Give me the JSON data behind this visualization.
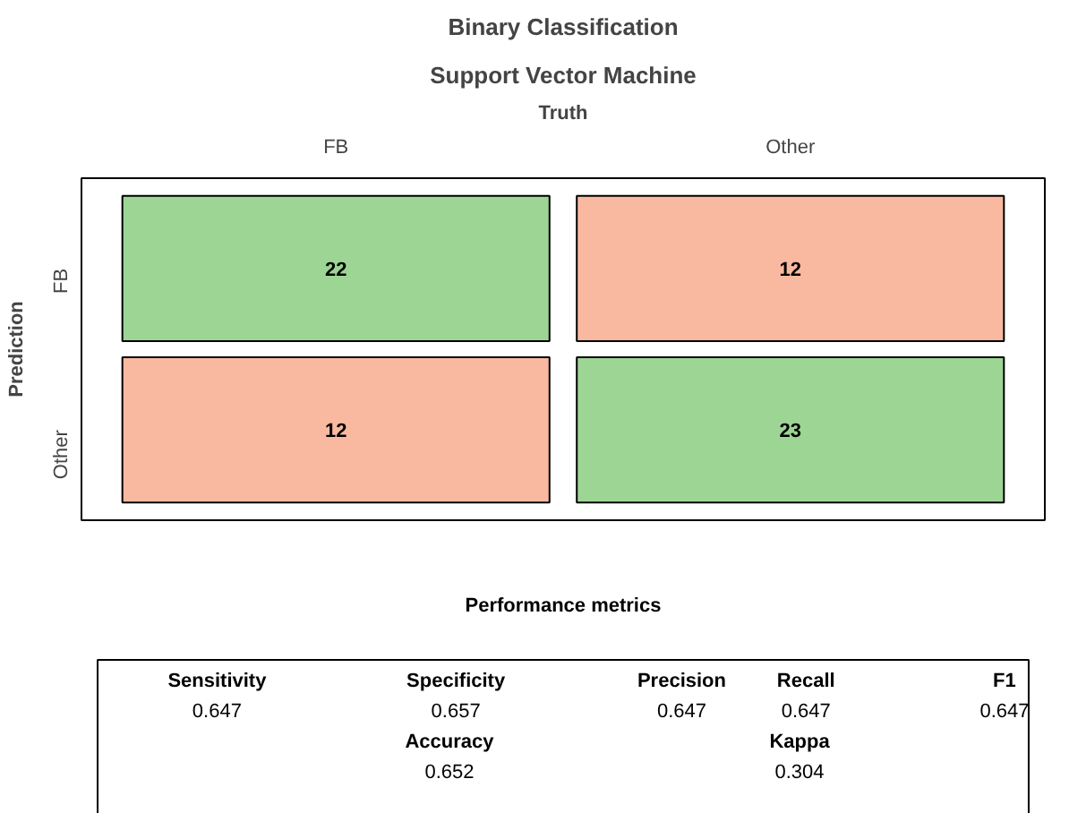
{
  "chart_data": [
    {
      "type": "heatmap",
      "title": "Binary Classification",
      "subtitle": "Support Vector Machine",
      "xlabel": "Truth",
      "ylabel": "Prediction",
      "categories": [
        "FB",
        "Other"
      ],
      "y_categories": [
        "FB",
        "Other"
      ],
      "cells": [
        [
          22,
          12
        ],
        [
          12,
          23
        ]
      ],
      "colors": [
        [
          "#9dd595",
          "#f9b9a0"
        ],
        [
          "#f9b9a0",
          "#9dd595"
        ]
      ],
      "data_labels": true
    },
    {
      "type": "other",
      "title": "Performance metrics",
      "categories": [
        "Sensitivity",
        "Specificity",
        "Precision",
        "Recall",
        "F1",
        "Accuracy",
        "Kappa"
      ],
      "values": [
        0.647,
        0.657,
        0.647,
        0.647,
        0.647,
        0.652,
        0.304
      ],
      "data_labels": true
    }
  ]
}
